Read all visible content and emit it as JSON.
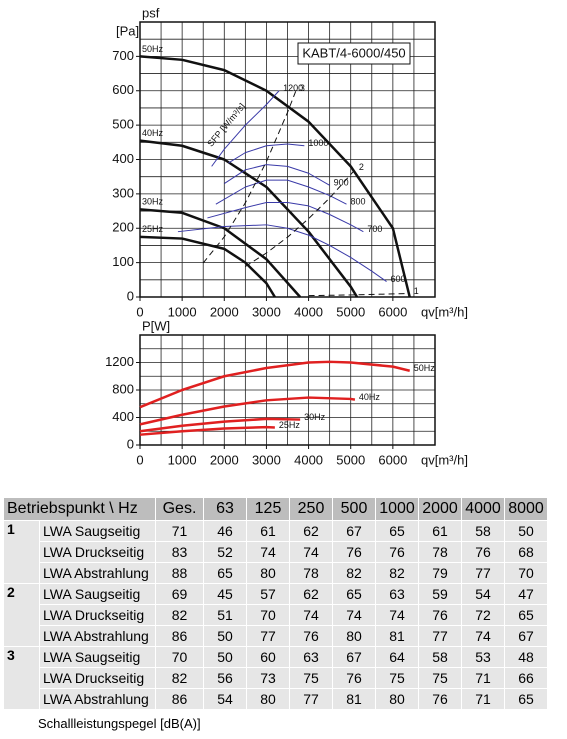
{
  "chart_data": [
    {
      "type": "line",
      "title": "KABT/4-6000/450",
      "ylabel": "psf",
      "yunit": "[Pa]",
      "xlabel": "qv[m³/h]",
      "xlim": [
        0,
        7000
      ],
      "ylim": [
        0,
        800
      ],
      "xticks": [
        0,
        1000,
        2000,
        3000,
        4000,
        5000,
        6000
      ],
      "yticks": [
        0,
        100,
        200,
        300,
        400,
        500,
        600,
        700
      ],
      "grid_step": [
        500,
        50
      ],
      "series": [
        {
          "name": "50Hz",
          "color": "#111111",
          "width": 2.5,
          "label_at": "start",
          "x": [
            0,
            1000,
            2000,
            3000,
            4000,
            5000,
            6000,
            6400
          ],
          "values": [
            700,
            690,
            660,
            600,
            510,
            380,
            200,
            0
          ]
        },
        {
          "name": "40Hz",
          "color": "#111111",
          "width": 2.5,
          "label_at": "start",
          "x": [
            0,
            1000,
            2000,
            3000,
            4000,
            5000,
            5150
          ],
          "values": [
            455,
            440,
            400,
            320,
            190,
            30,
            0
          ]
        },
        {
          "name": "30Hz",
          "color": "#111111",
          "width": 2.5,
          "label_at": "start",
          "x": [
            0,
            1000,
            2000,
            3000,
            3800
          ],
          "values": [
            255,
            245,
            200,
            110,
            0
          ]
        },
        {
          "name": "25Hz",
          "color": "#111111",
          "width": 2.5,
          "label_at": "start",
          "x": [
            0,
            1000,
            2000,
            2500,
            3000,
            3200
          ],
          "values": [
            175,
            170,
            140,
            100,
            40,
            0
          ]
        },
        {
          "name": "1200",
          "color": "#3a3aa8",
          "width": 1,
          "label_at": "end",
          "x": [
            1700,
            2000,
            2500,
            3000,
            3300
          ],
          "values": [
            380,
            430,
            500,
            560,
            600
          ]
        },
        {
          "name": "1000",
          "color": "#3a3aa8",
          "width": 1,
          "label_at": "end",
          "x": [
            2100,
            2500,
            3000,
            3500,
            3900
          ],
          "values": [
            390,
            420,
            440,
            445,
            440
          ]
        },
        {
          "name": "900",
          "color": "#3a3aa8",
          "width": 1,
          "label_at": "end",
          "x": [
            2000,
            2500,
            3000,
            3500,
            4000,
            4500
          ],
          "values": [
            330,
            370,
            385,
            380,
            360,
            325
          ]
        },
        {
          "name": "800",
          "color": "#3a3aa8",
          "width": 1,
          "label_at": "end",
          "x": [
            1800,
            2500,
            3000,
            3500,
            4000,
            4500,
            4900
          ],
          "values": [
            270,
            320,
            340,
            340,
            320,
            295,
            270
          ]
        },
        {
          "name": "700",
          "color": "#3a3aa8",
          "width": 1,
          "label_at": "end",
          "x": [
            1600,
            2500,
            3000,
            3500,
            4000,
            4500,
            5000,
            5300
          ],
          "values": [
            230,
            260,
            275,
            275,
            265,
            240,
            210,
            190
          ]
        },
        {
          "name": "600",
          "color": "#3a3aa8",
          "width": 1,
          "label_at": "end",
          "x": [
            900,
            2000,
            3000,
            3500,
            4000,
            4500,
            5000,
            5500,
            5850
          ],
          "values": [
            190,
            205,
            210,
            200,
            180,
            150,
            115,
            75,
            45
          ]
        },
        {
          "name": "3",
          "color": "#111111",
          "width": 1,
          "dash": true,
          "label_at": "end",
          "x": [
            1500,
            2000,
            2500,
            3000,
            3500,
            3700
          ],
          "values": [
            99,
            175,
            274,
            394,
            537,
            600
          ]
        },
        {
          "name": "2",
          "color": "#111111",
          "width": 1,
          "dash": true,
          "label_at": "end",
          "x": [
            2500,
            3000,
            3500,
            4000,
            4500,
            5100
          ],
          "values": [
            89,
            128,
            174,
            228,
            288,
            370
          ]
        },
        {
          "name": "1",
          "color": "#111111",
          "width": 1,
          "dash": true,
          "label_at": "end",
          "x": [
            4000,
            5000,
            6000,
            6400
          ],
          "values": [
            4,
            6,
            9,
            10
          ]
        }
      ],
      "annotations": [
        {
          "text": "SFP [W/m³/s]",
          "x": 1650,
          "y": 440
        }
      ]
    },
    {
      "type": "line",
      "ylabel": "P[W]",
      "xlabel": "qv[m³/h]",
      "xlim": [
        0,
        7000
      ],
      "ylim": [
        0,
        1600
      ],
      "xticks": [
        0,
        1000,
        2000,
        3000,
        4000,
        5000,
        6000
      ],
      "yticks": [
        0,
        400,
        800,
        1200
      ],
      "grid_step": [
        500,
        200
      ],
      "series": [
        {
          "name": "50Hz",
          "color": "#e02020",
          "width": 2.5,
          "label_at": "end",
          "x": [
            0,
            1000,
            2000,
            3000,
            4000,
            4500,
            5000,
            6000,
            6400
          ],
          "values": [
            550,
            800,
            1000,
            1120,
            1200,
            1210,
            1200,
            1140,
            1080
          ]
        },
        {
          "name": "40Hz",
          "color": "#e02020",
          "width": 2.5,
          "label_at": "end",
          "x": [
            0,
            1000,
            2000,
            3000,
            4000,
            5000,
            5100
          ],
          "values": [
            300,
            440,
            560,
            650,
            690,
            670,
            660
          ]
        },
        {
          "name": "30Hz",
          "color": "#e02020",
          "width": 2.5,
          "label_at": "end",
          "x": [
            0,
            1000,
            2000,
            3000,
            3800
          ],
          "values": [
            200,
            280,
            340,
            380,
            370
          ]
        },
        {
          "name": "25Hz",
          "color": "#e02020",
          "width": 2.5,
          "label_at": "end",
          "x": [
            0,
            1000,
            2000,
            3000,
            3200
          ],
          "values": [
            150,
            200,
            240,
            260,
            255
          ]
        }
      ]
    }
  ],
  "table": {
    "header": [
      "Betriebspunkt \\ Hz",
      "Ges.",
      "63",
      "125",
      "250",
      "500",
      "1000",
      "2000",
      "4000",
      "8000"
    ],
    "groups": [
      {
        "point": "1",
        "rows": [
          {
            "label": "LWA Saugseitig",
            "values": [
              71,
              46,
              61,
              62,
              67,
              65,
              61,
              58,
              50
            ]
          },
          {
            "label": "LWA Druckseitig",
            "values": [
              83,
              52,
              74,
              74,
              76,
              76,
              78,
              76,
              68
            ]
          },
          {
            "label": "LWA Abstrahlung",
            "values": [
              88,
              65,
              80,
              78,
              82,
              82,
              79,
              77,
              70
            ]
          }
        ]
      },
      {
        "point": "2",
        "rows": [
          {
            "label": "LWA Saugseitig",
            "values": [
              69,
              45,
              57,
              62,
              65,
              63,
              59,
              54,
              47
            ]
          },
          {
            "label": "LWA Druckseitig",
            "values": [
              82,
              51,
              70,
              74,
              74,
              74,
              76,
              72,
              65
            ]
          },
          {
            "label": "LWA Abstrahlung",
            "values": [
              86,
              50,
              77,
              76,
              80,
              81,
              77,
              74,
              67
            ]
          }
        ]
      },
      {
        "point": "3",
        "rows": [
          {
            "label": "LWA Saugseitig",
            "values": [
              70,
              50,
              60,
              63,
              67,
              64,
              58,
              53,
              48
            ]
          },
          {
            "label": "LWA Druckseitig",
            "values": [
              82,
              56,
              73,
              75,
              76,
              75,
              75,
              71,
              66
            ]
          },
          {
            "label": "LWA Abstrahlung",
            "values": [
              86,
              54,
              80,
              77,
              81,
              80,
              76,
              71,
              65
            ]
          }
        ]
      }
    ],
    "footnote": "Schallleistungspegel [dB(A)]"
  }
}
